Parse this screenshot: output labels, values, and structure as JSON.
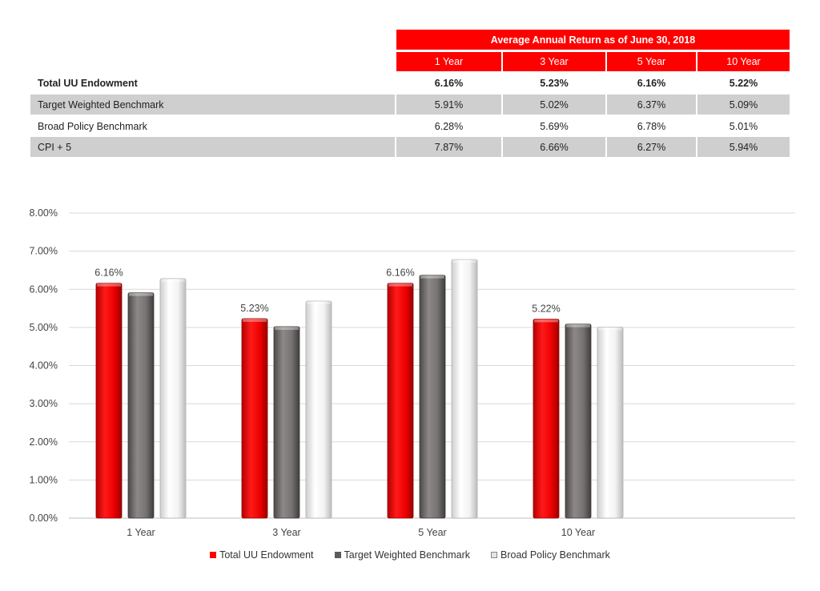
{
  "table": {
    "title": "Average Annual Return as of June 30, 2018",
    "columns": [
      "1 Year",
      "3 Year",
      "5 Year",
      "10 Year"
    ],
    "rows": [
      {
        "label": "Total UU Endowment",
        "values": [
          "6.16%",
          "5.23%",
          "6.16%",
          "5.22%"
        ],
        "bold": true,
        "shaded": false
      },
      {
        "label": "Target Weighted Benchmark",
        "values": [
          "5.91%",
          "5.02%",
          "6.37%",
          "5.09%"
        ],
        "bold": false,
        "shaded": true
      },
      {
        "label": "Broad Policy Benchmark",
        "values": [
          "6.28%",
          "5.69%",
          "6.78%",
          "5.01%"
        ],
        "bold": false,
        "shaded": false
      },
      {
        "label": "CPI + 5",
        "values": [
          "7.87%",
          "6.66%",
          "6.27%",
          "5.94%"
        ],
        "bold": false,
        "shaded": true
      }
    ]
  },
  "chart_data": {
    "type": "bar",
    "categories": [
      "1 Year",
      "3 Year",
      "5 Year",
      "10 Year"
    ],
    "series": [
      {
        "name": "Total UU Endowment",
        "values": [
          6.16,
          5.23,
          6.16,
          5.22
        ],
        "color": "#ff0000",
        "data_labels": [
          "6.16%",
          "5.23%",
          "6.16%",
          "5.22%"
        ]
      },
      {
        "name": "Target Weighted Benchmark",
        "values": [
          5.91,
          5.02,
          6.37,
          5.09
        ],
        "color": "#706c6c"
      },
      {
        "name": "Broad Policy Benchmark",
        "values": [
          6.28,
          5.69,
          6.78,
          5.01
        ],
        "color": "#f3f2f2"
      }
    ],
    "yticks": [
      "0.00%",
      "1.00%",
      "2.00%",
      "3.00%",
      "4.00%",
      "5.00%",
      "6.00%",
      "7.00%",
      "8.00%"
    ],
    "ylim": [
      0,
      8
    ],
    "grid": true,
    "legend": "bottom",
    "title": "",
    "xlabel": "",
    "ylabel": ""
  }
}
